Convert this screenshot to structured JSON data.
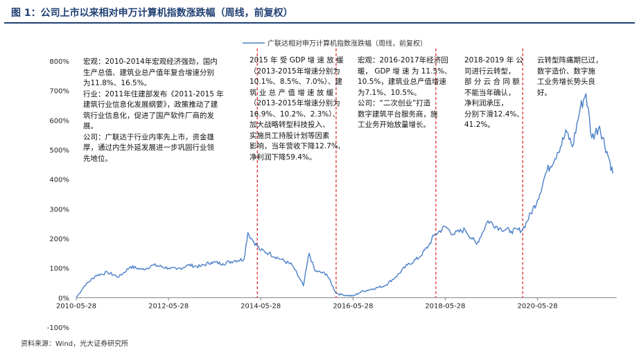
{
  "figure_title": "图 1：公司上市以来相对申万计算机指数涨跌幅（周线，前复权）",
  "source_text": "资料来源：Wind，光大证券研究所",
  "colors": {
    "line": "#4a7fc8",
    "divider": "#e03030",
    "title": "#1f3f73"
  },
  "annotations": [
    {
      "paragraphs": [
        "宏观：2010-2014年宏观经济强劲，国内\n生产总值、建筑业总产值年复合增速分别\n为11.8%、16.5%。",
        "行业：2011年住建部发布《2011-2015 年\n建筑行业信息化发展纲要》，政策推动了建\n筑行业信息化，促进了国产软件厂商的发\n展。",
        "公司：广联达于行业内率先上市，资金雄\n厚，通过内生外延发展进一步巩固行业领\n先地位。"
      ]
    },
    {
      "paragraphs": [
        "2015 年 受 GDP 增 速 放 缓\n（2013-2015年增速分别为\n10.1%、8.5%、7.0%）、建\n筑 业 总 产 值 增 速 放 缓\n（2013-2015年增速分别为\n16.9%、10.2%、2.3%）、\n加大战略转型科技投入、\n实施员工持股计划等因素\n影响，当年营收下降12.7%,\n净利润下降59.4%。"
      ]
    },
    {
      "paragraphs": [
        "宏观：2016-2017年经济回\n暖， GDP 增 速 为 11.5%、\n10.5%，建筑业总产值增速\n为7.1%、10.5%。",
        "公司：“二次创业”打造\n数字建筑平台服务商，施\n工业务开始放量增长。"
      ]
    },
    {
      "paragraphs": [
        "2018-2019 年 公\n司进行云转型，\n部 分 云 合 同 额\n不能当年确认，\n净利润承压，\n分别下滑12.4%、\n41.2%。"
      ]
    },
    {
      "paragraphs": [
        "云转型阵痛期已过，\n数字造价、数字施\n工业务增长势头良\n好。"
      ]
    }
  ],
  "chart_data": {
    "type": "line",
    "title": "",
    "xlabel": "",
    "ylabel": "",
    "series": [
      {
        "name": "广联达相对申万计算机指数涨跌幅（周线，前复权）",
        "x": [
          "2010-05-28",
          "2010-08-01",
          "2010-11-01",
          "2011-02-01",
          "2011-05-01",
          "2011-08-01",
          "2011-11-01",
          "2012-02-01",
          "2012-05-28",
          "2012-08-01",
          "2012-11-01",
          "2013-02-01",
          "2013-05-01",
          "2013-08-01",
          "2013-11-01",
          "2014-01-15",
          "2014-02-15",
          "2014-03-15",
          "2014-05-28",
          "2014-08-01",
          "2014-11-01",
          "2015-02-01",
          "2015-05-01",
          "2015-06-15",
          "2015-08-01",
          "2015-11-01",
          "2016-01-15",
          "2016-03-01",
          "2016-05-28",
          "2016-08-01",
          "2016-11-01",
          "2017-02-01",
          "2017-05-01",
          "2017-08-01",
          "2017-11-01",
          "2018-01-15",
          "2018-03-01",
          "2018-05-28",
          "2018-08-01",
          "2018-11-01",
          "2019-02-01",
          "2019-05-01",
          "2019-08-01",
          "2019-11-01",
          "2020-02-01",
          "2020-05-28",
          "2020-08-01",
          "2020-11-01",
          "2021-01-15",
          "2021-03-01",
          "2021-05-01",
          "2021-06-15",
          "2021-08-01",
          "2021-10-01",
          "2021-12-15",
          "2022-01-15"
        ],
        "values": [
          0,
          40,
          75,
          85,
          70,
          105,
          95,
          110,
          100,
          95,
          110,
          105,
          120,
          115,
          125,
          130,
          220,
          200,
          160,
          150,
          130,
          110,
          40,
          150,
          90,
          80,
          15,
          10,
          5,
          20,
          30,
          40,
          70,
          110,
          135,
          175,
          210,
          240,
          215,
          230,
          180,
          260,
          235,
          225,
          230,
          330,
          420,
          490,
          560,
          510,
          640,
          690,
          540,
          580,
          470,
          420
        ]
      }
    ],
    "x_ticks": [
      "2010-05-28",
      "2012-05-28",
      "2014-05-28",
      "2016-05-28",
      "2018-05-28",
      "2020-05-28"
    ],
    "y_ticks": [
      "800%",
      "700%",
      "600%",
      "500%",
      "400%",
      "300%",
      "200%",
      "100%",
      "0%",
      "-100%"
    ],
    "ylim": [
      -100,
      800
    ],
    "xlim": [
      "2010-05-28",
      "2022-02-15"
    ],
    "dividers": [
      "2014-05-01",
      "2016-01-15",
      "2018-03-15",
      "2020-02-01"
    ],
    "grid": false,
    "legend": "top-center"
  }
}
